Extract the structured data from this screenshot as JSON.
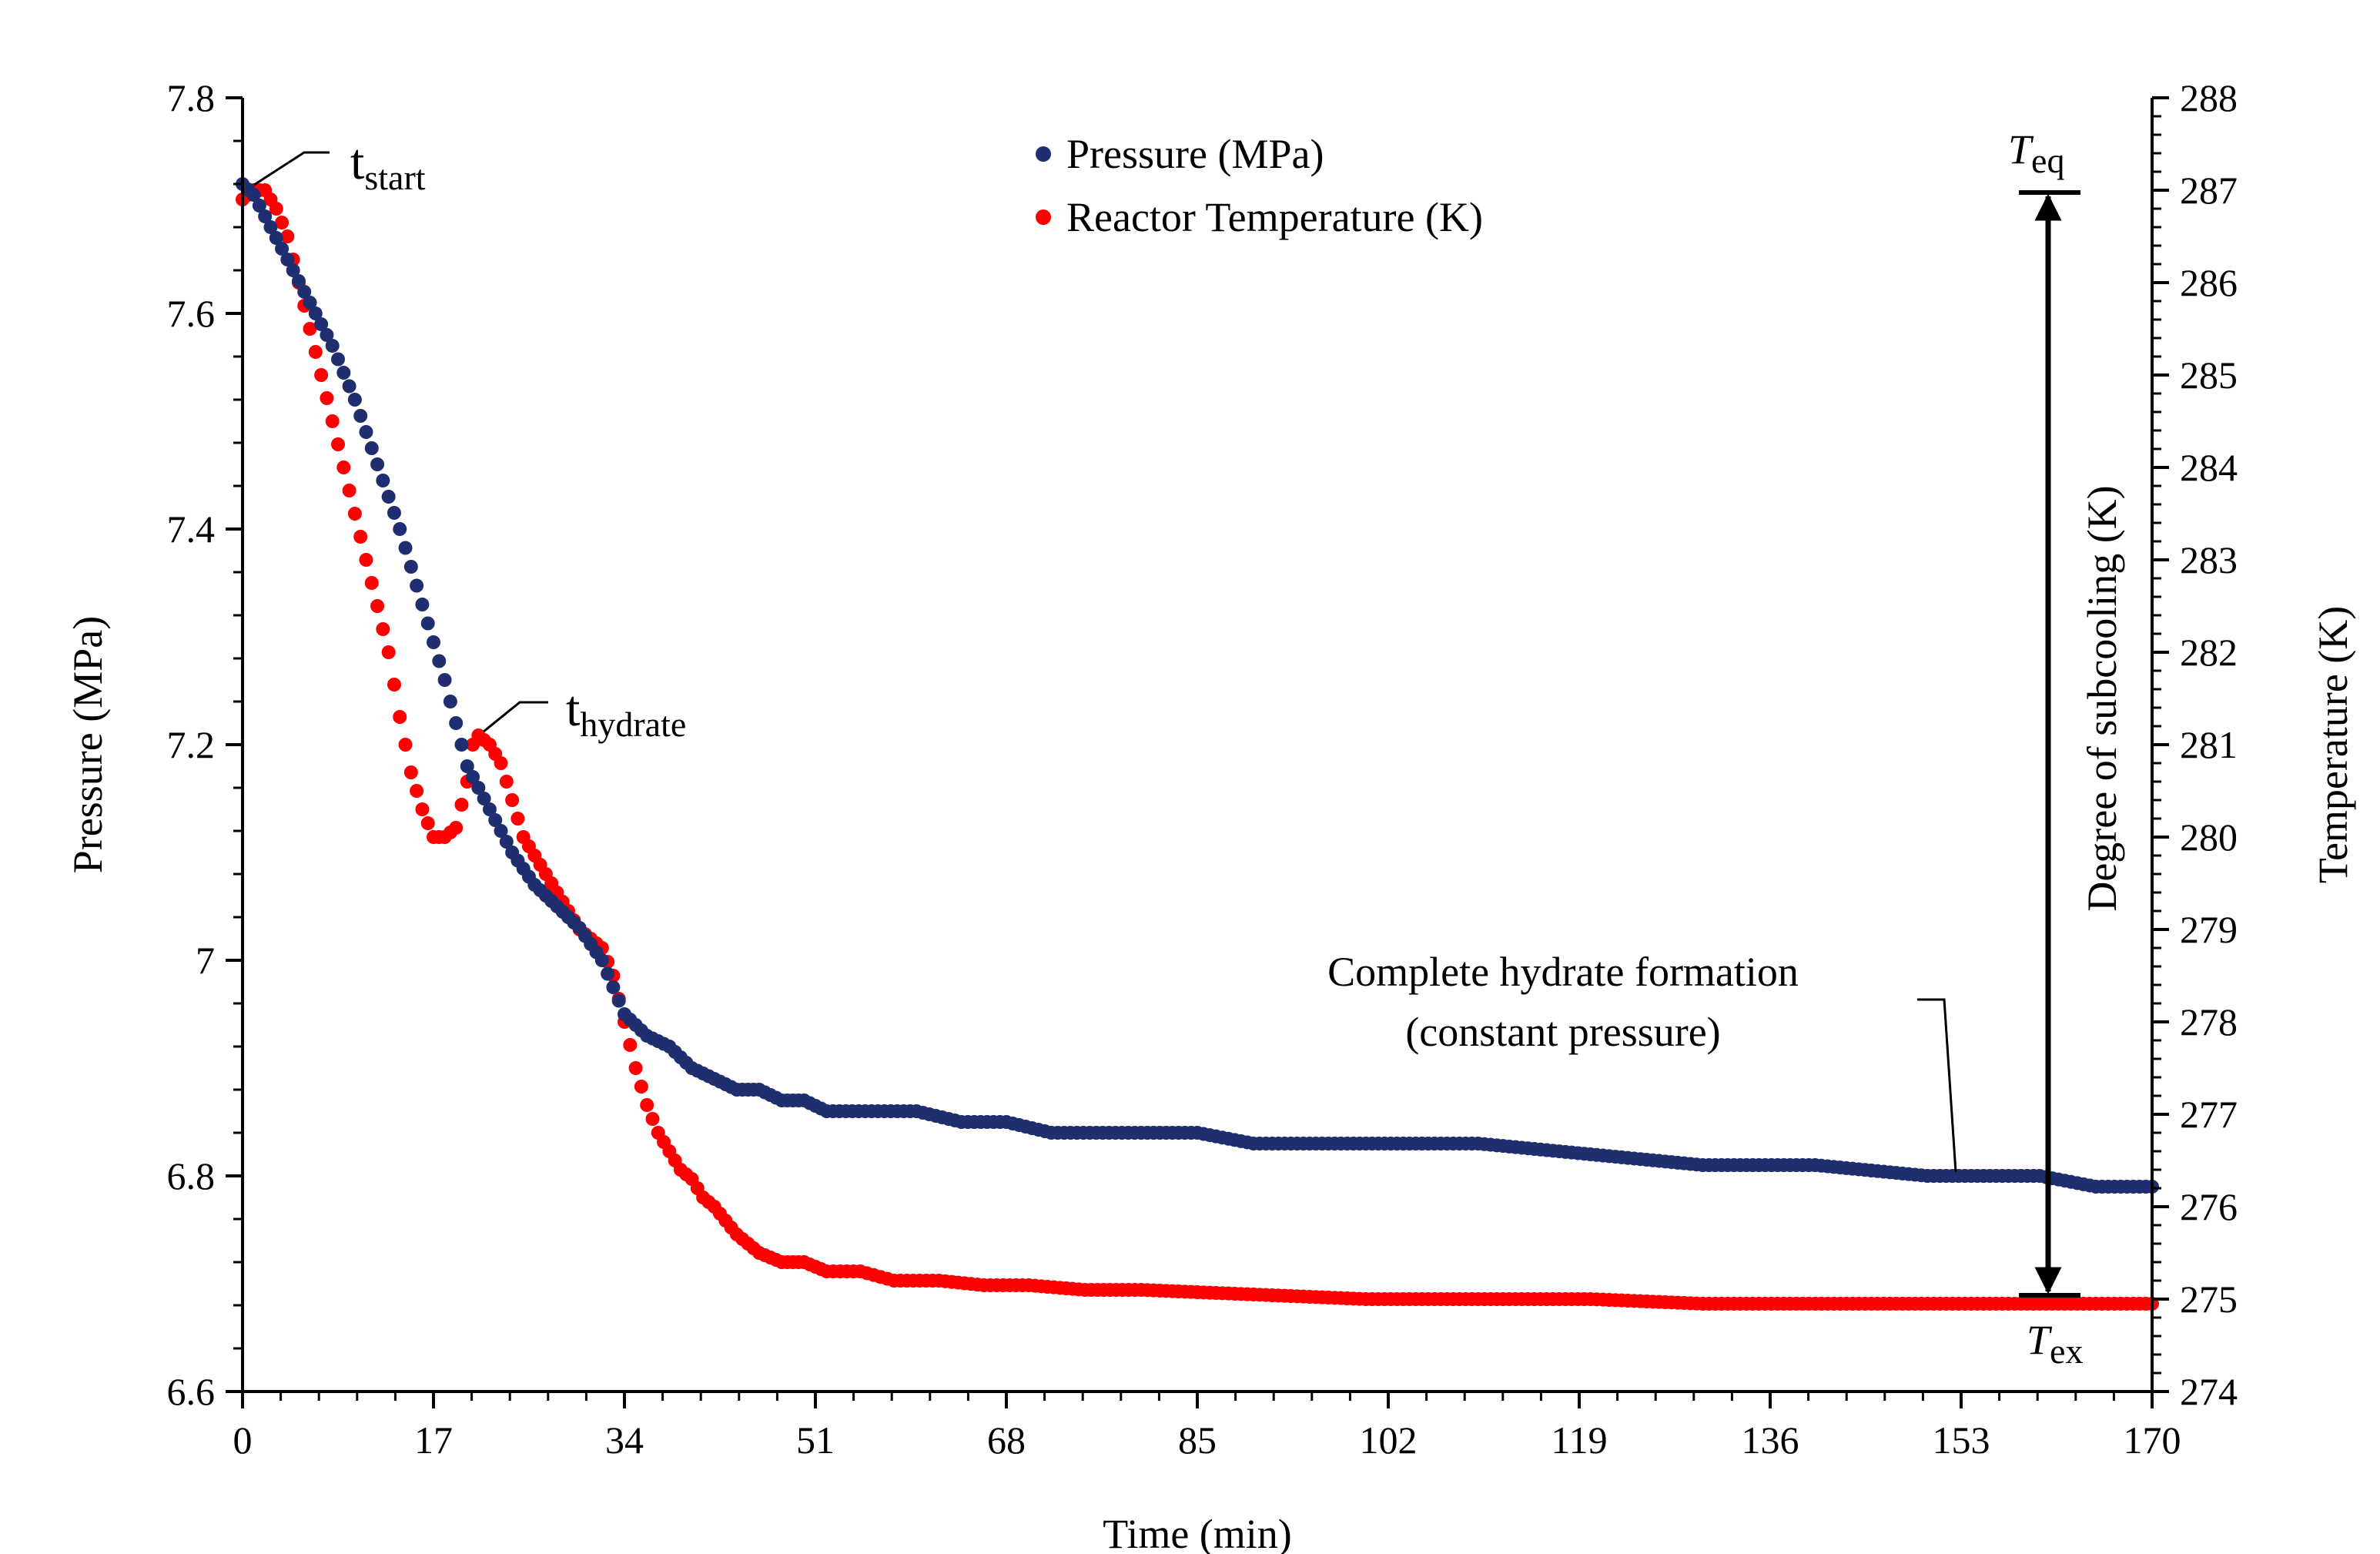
{
  "chart_data": {
    "type": "scatter",
    "title": "",
    "xlabel": "Time (min)",
    "ylabel_left": "Pressure (MPa)",
    "ylabel_right": "Temperature (K)",
    "xlim": [
      0,
      170
    ],
    "ylim_left": [
      6.6,
      7.8
    ],
    "ylim_right": [
      274,
      288
    ],
    "x_ticks": [
      0,
      17,
      34,
      51,
      68,
      85,
      102,
      119,
      136,
      153,
      170
    ],
    "y_left_ticks": [
      6.6,
      6.8,
      7,
      7.2,
      7.4,
      7.6,
      7.8
    ],
    "y_left_tick_labels": [
      "6.6",
      "6.8",
      "7",
      "7.2",
      "7.4",
      "7.6",
      "7.8"
    ],
    "y_right_ticks": [
      274,
      275,
      276,
      277,
      278,
      279,
      280,
      281,
      282,
      283,
      284,
      285,
      286,
      287,
      288
    ],
    "legend_position": "top-center",
    "grid": false,
    "series": [
      {
        "name": "Pressure (MPa)",
        "axis": "left",
        "color": "#1f2e6e",
        "x": [
          0,
          1,
          2,
          3,
          4,
          5,
          6,
          7,
          8,
          10,
          12,
          14,
          16,
          18,
          19,
          20,
          21,
          22,
          24,
          26,
          28,
          30,
          32,
          34,
          36,
          38,
          40,
          42,
          44,
          46,
          48,
          50,
          52,
          56,
          60,
          64,
          68,
          72,
          76,
          80,
          85,
          90,
          100,
          110,
          120,
          130,
          140,
          150,
          155,
          160,
          165,
          170
        ],
        "values": [
          7.72,
          7.71,
          7.69,
          7.67,
          7.65,
          7.63,
          7.61,
          7.59,
          7.57,
          7.52,
          7.46,
          7.4,
          7.33,
          7.26,
          7.22,
          7.18,
          7.16,
          7.14,
          7.1,
          7.07,
          7.05,
          7.03,
          7.0,
          6.95,
          6.93,
          6.92,
          6.9,
          6.89,
          6.88,
          6.88,
          6.87,
          6.87,
          6.86,
          6.86,
          6.86,
          6.85,
          6.85,
          6.84,
          6.84,
          6.84,
          6.84,
          6.83,
          6.83,
          6.83,
          6.82,
          6.81,
          6.81,
          6.8,
          6.8,
          6.8,
          6.79,
          6.79
        ]
      },
      {
        "name": "Reactor Temperature (K)",
        "axis": "right",
        "color": "#ff0000",
        "x": [
          0,
          1,
          2,
          3,
          4,
          5,
          6,
          7,
          8,
          9,
          10,
          11,
          12,
          13,
          14,
          15,
          16,
          17,
          18,
          19,
          20,
          20.5,
          21,
          22,
          23,
          24,
          25,
          26,
          27,
          28,
          29,
          30,
          31,
          32,
          33,
          34,
          35,
          36,
          37,
          38,
          39,
          40,
          41,
          42,
          44,
          46,
          48,
          50,
          52,
          55,
          58,
          62,
          66,
          70,
          75,
          80,
          90,
          100,
          110,
          120,
          130,
          140,
          150,
          160,
          170
        ],
        "values": [
          286.9,
          287.0,
          287.0,
          286.8,
          286.5,
          286.0,
          285.5,
          285.0,
          284.5,
          284.0,
          283.5,
          283.0,
          282.5,
          282.0,
          281.3,
          280.7,
          280.3,
          280.0,
          280.0,
          280.1,
          280.6,
          281.0,
          281.1,
          281.0,
          280.8,
          280.4,
          280.0,
          279.8,
          279.6,
          279.4,
          279.2,
          279.0,
          278.9,
          278.8,
          278.5,
          278.0,
          277.5,
          277.1,
          276.8,
          276.6,
          276.4,
          276.3,
          276.1,
          276.0,
          275.7,
          275.5,
          275.4,
          275.4,
          275.3,
          275.3,
          275.2,
          275.2,
          275.15,
          275.15,
          275.1,
          275.1,
          275.05,
          275.0,
          275.0,
          275.0,
          274.95,
          274.95,
          274.95,
          274.95,
          274.95
        ]
      }
    ],
    "annotations": {
      "t_start": {
        "main": "t",
        "sub": "start"
      },
      "t_hydrate": {
        "main": "t",
        "sub": "hydrate"
      },
      "t_eq": {
        "main": "T",
        "sub": "eq"
      },
      "t_ex": {
        "main": "T",
        "sub": "ex"
      },
      "subcooling_label": "Degree of subcooling (K)",
      "complete_line1": "Complete hydrate formation",
      "complete_line2": "(constant pressure)"
    }
  }
}
